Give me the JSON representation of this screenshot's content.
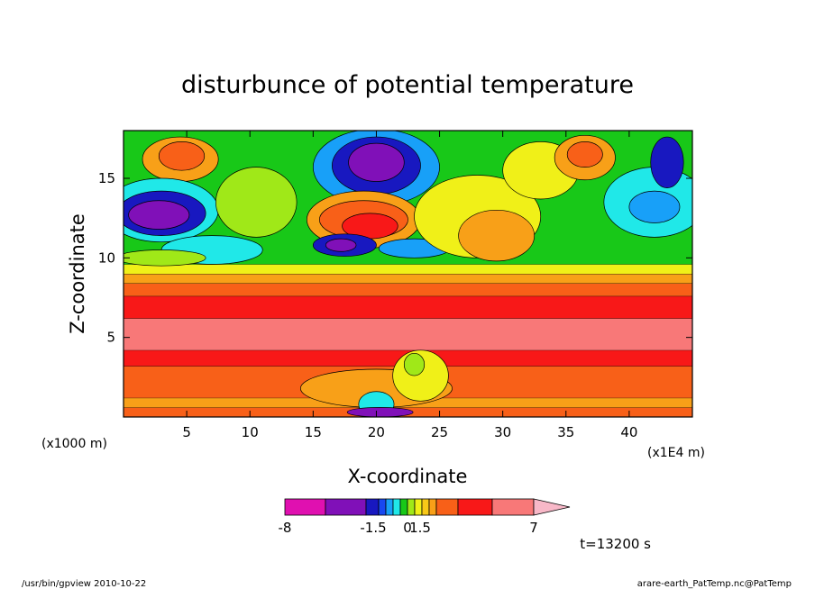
{
  "chart_data": {
    "type": "heatmap",
    "title": "disturbunce of potential temperature",
    "xlabel": "X-coordinate",
    "ylabel": "Z-coordinate",
    "x_unit_label": "(x1E4 m)",
    "y_unit_label": "(x1000 m)",
    "xlim": [
      0,
      45
    ],
    "ylim": [
      0,
      18
    ],
    "x_ticks": [
      5,
      10,
      15,
      20,
      25,
      30,
      35,
      40
    ],
    "y_ticks": [
      5,
      10,
      15
    ],
    "time_label": "t=13200 s",
    "colorbar": {
      "tick_labels": [
        "-8",
        "-1.5",
        "0",
        "1.5",
        "7"
      ],
      "colors": [
        "#e010b0",
        "#8010b8",
        "#1818c0",
        "#1848f0",
        "#18a0f8",
        "#20e8e8",
        "#18c818",
        "#a0e818",
        "#f0f018",
        "#f8c818",
        "#f8a018",
        "#f86018",
        "#f81818",
        "#f87878",
        "#f8b8c8"
      ]
    },
    "bands": [
      {
        "zmin": 0.0,
        "zmax": 0.6,
        "color": "#f86018"
      },
      {
        "zmin": 0.6,
        "zmax": 1.2,
        "color": "#f8a018"
      },
      {
        "zmin": 1.2,
        "zmax": 3.2,
        "color": "#f86018"
      },
      {
        "zmin": 3.2,
        "zmax": 4.2,
        "color": "#f81818"
      },
      {
        "zmin": 4.2,
        "zmax": 6.2,
        "color": "#f87878"
      },
      {
        "zmin": 6.2,
        "zmax": 7.6,
        "color": "#f81818"
      },
      {
        "zmin": 7.6,
        "zmax": 8.4,
        "color": "#f86018"
      },
      {
        "zmin": 8.4,
        "zmax": 9.0,
        "color": "#f8a018"
      },
      {
        "zmin": 9.0,
        "zmax": 9.6,
        "color": "#f0f018"
      },
      {
        "zmin": 9.6,
        "zmax": 18.0,
        "color": "#18c818"
      }
    ],
    "features": [
      {
        "x": 4.5,
        "z": 16.2,
        "rx": 3.0,
        "rz": 1.4,
        "color": "#f8a018"
      },
      {
        "x": 4.6,
        "z": 16.4,
        "rx": 1.8,
        "rz": 0.9,
        "color": "#f86018"
      },
      {
        "x": 3.0,
        "z": 13.0,
        "rx": 4.5,
        "rz": 2.0,
        "color": "#20e8e8"
      },
      {
        "x": 3.0,
        "z": 12.8,
        "rx": 3.5,
        "rz": 1.4,
        "color": "#1818c0"
      },
      {
        "x": 2.8,
        "z": 12.7,
        "rx": 2.4,
        "rz": 0.9,
        "color": "#8010b8"
      },
      {
        "x": 10.5,
        "z": 13.5,
        "rx": 3.2,
        "rz": 2.2,
        "color": "#a0e818"
      },
      {
        "x": 20.0,
        "z": 15.7,
        "rx": 5.0,
        "rz": 2.4,
        "color": "#18a0f8"
      },
      {
        "x": 20.0,
        "z": 15.8,
        "rx": 3.5,
        "rz": 1.8,
        "color": "#1818c0"
      },
      {
        "x": 20.0,
        "z": 16.0,
        "rx": 2.2,
        "rz": 1.2,
        "color": "#8010b8"
      },
      {
        "x": 19.0,
        "z": 12.4,
        "rx": 4.5,
        "rz": 1.8,
        "color": "#f8a018"
      },
      {
        "x": 19.0,
        "z": 12.4,
        "rx": 3.5,
        "rz": 1.2,
        "color": "#f86018"
      },
      {
        "x": 19.5,
        "z": 12.0,
        "rx": 2.2,
        "rz": 0.8,
        "color": "#f81818"
      },
      {
        "x": 17.5,
        "z": 10.8,
        "rx": 2.5,
        "rz": 0.7,
        "color": "#1818c0"
      },
      {
        "x": 17.2,
        "z": 10.8,
        "rx": 1.2,
        "rz": 0.4,
        "color": "#8010b8"
      },
      {
        "x": 23.0,
        "z": 10.6,
        "rx": 2.8,
        "rz": 0.6,
        "color": "#18a0f8"
      },
      {
        "x": 28.0,
        "z": 12.6,
        "rx": 5.0,
        "rz": 2.6,
        "color": "#f0f018"
      },
      {
        "x": 29.5,
        "z": 11.4,
        "rx": 3.0,
        "rz": 1.6,
        "color": "#f8a018"
      },
      {
        "x": 33.0,
        "z": 15.5,
        "rx": 3.0,
        "rz": 1.8,
        "color": "#f0f018"
      },
      {
        "x": 36.5,
        "z": 16.3,
        "rx": 2.4,
        "rz": 1.4,
        "color": "#f8a018"
      },
      {
        "x": 36.5,
        "z": 16.5,
        "rx": 1.4,
        "rz": 0.8,
        "color": "#f86018"
      },
      {
        "x": 42.0,
        "z": 13.5,
        "rx": 4.0,
        "rz": 2.2,
        "color": "#20e8e8"
      },
      {
        "x": 42.0,
        "z": 13.2,
        "rx": 2.0,
        "rz": 1.0,
        "color": "#18a0f8"
      },
      {
        "x": 43.0,
        "z": 16.0,
        "rx": 1.3,
        "rz": 1.6,
        "color": "#1818c0"
      },
      {
        "x": 7.0,
        "z": 10.5,
        "rx": 4.0,
        "rz": 0.9,
        "color": "#20e8e8"
      },
      {
        "x": 3.0,
        "z": 10.0,
        "rx": 3.5,
        "rz": 0.5,
        "color": "#a0e818"
      },
      {
        "x": 20.0,
        "z": 1.8,
        "rx": 6.0,
        "rz": 1.2,
        "color": "#f8a018"
      },
      {
        "x": 23.5,
        "z": 2.6,
        "rx": 2.2,
        "rz": 1.6,
        "color": "#f0f018"
      },
      {
        "x": 23.0,
        "z": 3.3,
        "rx": 0.8,
        "rz": 0.7,
        "color": "#a0e818"
      },
      {
        "x": 20.0,
        "z": 0.8,
        "rx": 1.4,
        "rz": 0.8,
        "color": "#20e8e8"
      },
      {
        "x": 20.3,
        "z": 0.3,
        "rx": 2.6,
        "rz": 0.3,
        "color": "#8010b8"
      }
    ]
  },
  "footer": {
    "left": "/usr/bin/gpview  2010-10-22",
    "right": "arare-earth_PatTemp.nc@PatTemp"
  }
}
